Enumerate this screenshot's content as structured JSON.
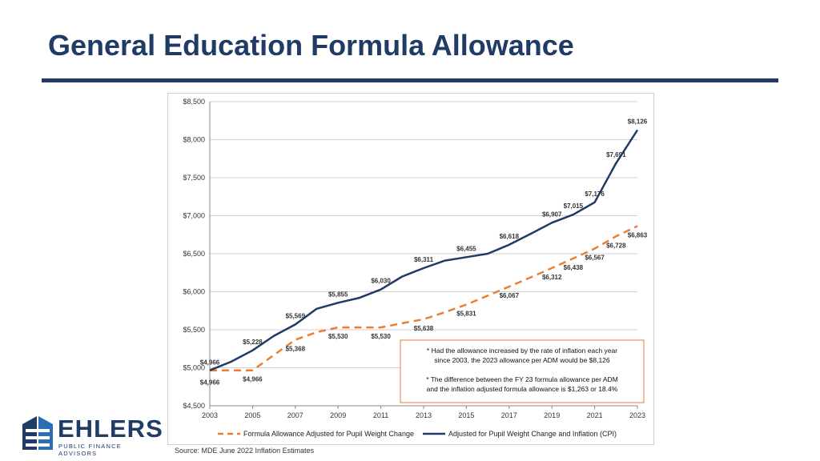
{
  "slide": {
    "title": "General Education Formula Allowance",
    "source": "Source: MDE June 2022 Inflation Estimates"
  },
  "logo": {
    "word": "EHLERS",
    "sub": "PUBLIC FINANCE ADVISORS"
  },
  "colors": {
    "navy": "#1f3b66",
    "orange": "#ed7d31",
    "annotation_border": "#ed7d31",
    "grid": "#d0d0d0"
  },
  "chart_data": {
    "type": "line",
    "ylim": [
      4500,
      8500
    ],
    "yticks": [
      4500,
      5000,
      5500,
      6000,
      6500,
      7000,
      7500,
      8000,
      8500
    ],
    "ytick_labels": [
      "$4,500",
      "$5,000",
      "$5,500",
      "$6,000",
      "$6,500",
      "$7,000",
      "$7,500",
      "$8,000",
      "$8,500"
    ],
    "xlim": [
      2003,
      2023
    ],
    "xticks": [
      2003,
      2005,
      2007,
      2009,
      2011,
      2013,
      2015,
      2017,
      2019,
      2021,
      2023
    ],
    "xtick_labels": [
      "2003",
      "2005",
      "2007",
      "2009",
      "2011",
      "2013",
      "2015",
      "2017",
      "2019",
      "2021",
      "2023"
    ],
    "grid": "horizontal",
    "legend_position": "bottom",
    "series": [
      {
        "name": "Formula Allowance Adjusted for Pupil Weight Change",
        "color": "#ed7d31",
        "style": "dashed",
        "x": [
          2003,
          2004,
          2005,
          2006,
          2007,
          2008,
          2009,
          2010,
          2011,
          2012,
          2013,
          2014,
          2015,
          2016,
          2017,
          2018,
          2019,
          2020,
          2021,
          2022,
          2023
        ],
        "y": [
          4966,
          4966,
          4966,
          5168,
          5368,
          5468,
          5530,
          5530,
          5530,
          5585,
          5638,
          5731,
          5831,
          5948,
          6067,
          6188,
          6312,
          6438,
          6567,
          6728,
          6863
        ],
        "labels": [
          {
            "x": 2003,
            "y": 4966,
            "text": "$4,966"
          },
          {
            "x": 2005,
            "y": 4966,
            "text": "$4,966"
          },
          {
            "x": 2007,
            "y": 5368,
            "text": "$5,368"
          },
          {
            "x": 2009,
            "y": 5530,
            "text": "$5,530"
          },
          {
            "x": 2011,
            "y": 5530,
            "text": "$5,530"
          },
          {
            "x": 2013,
            "y": 5638,
            "text": "$5,638"
          },
          {
            "x": 2015,
            "y": 5831,
            "text": "$5,831"
          },
          {
            "x": 2017,
            "y": 6067,
            "text": "$6,067"
          },
          {
            "x": 2019,
            "y": 6312,
            "text": "$6,312"
          },
          {
            "x": 2020,
            "y": 6438,
            "text": "$6,438"
          },
          {
            "x": 2021,
            "y": 6567,
            "text": "$6,567"
          },
          {
            "x": 2022,
            "y": 6728,
            "text": "$6,728"
          },
          {
            "x": 2023,
            "y": 6863,
            "text": "$6,863"
          }
        ]
      },
      {
        "name": "Adjusted for Pupil Weight Change and Inflation (CPI)",
        "color": "#1f3b66",
        "style": "solid",
        "x": [
          2003,
          2004,
          2005,
          2006,
          2007,
          2008,
          2009,
          2010,
          2011,
          2012,
          2013,
          2014,
          2015,
          2016,
          2017,
          2018,
          2019,
          2020,
          2021,
          2022,
          2023
        ],
        "y": [
          4966,
          5080,
          5228,
          5420,
          5569,
          5776,
          5855,
          5920,
          6030,
          6200,
          6311,
          6410,
          6455,
          6500,
          6618,
          6760,
          6907,
          7015,
          7176,
          7691,
          8126
        ],
        "labels": [
          {
            "x": 2003,
            "y": 4966,
            "text": "$4,966"
          },
          {
            "x": 2005,
            "y": 5228,
            "text": "$5,228"
          },
          {
            "x": 2007,
            "y": 5569,
            "text": "$5,569"
          },
          {
            "x": 2009,
            "y": 5855,
            "text": "$5,855"
          },
          {
            "x": 2011,
            "y": 6030,
            "text": "$6,030"
          },
          {
            "x": 2013,
            "y": 6311,
            "text": "$6,311"
          },
          {
            "x": 2015,
            "y": 6455,
            "text": "$6,455"
          },
          {
            "x": 2017,
            "y": 6618,
            "text": "$6,618"
          },
          {
            "x": 2019,
            "y": 6907,
            "text": "$6,907"
          },
          {
            "x": 2020,
            "y": 7015,
            "text": "$7,015"
          },
          {
            "x": 2021,
            "y": 7176,
            "text": "$7,176"
          },
          {
            "x": 2022,
            "y": 7691,
            "text": "$7,691"
          },
          {
            "x": 2023,
            "y": 8126,
            "text": "$8,126"
          }
        ]
      }
    ],
    "annotation": {
      "lines": [
        "* Had the allowance increased by the rate of inflation each year",
        "since 2003, the 2023 allowance per ADM would be $8,126",
        "* The difference  between  the FY 23 formula allowance per ADM",
        "and the inflation adjusted formula allowance is $1,263 or 18.4%"
      ]
    }
  }
}
